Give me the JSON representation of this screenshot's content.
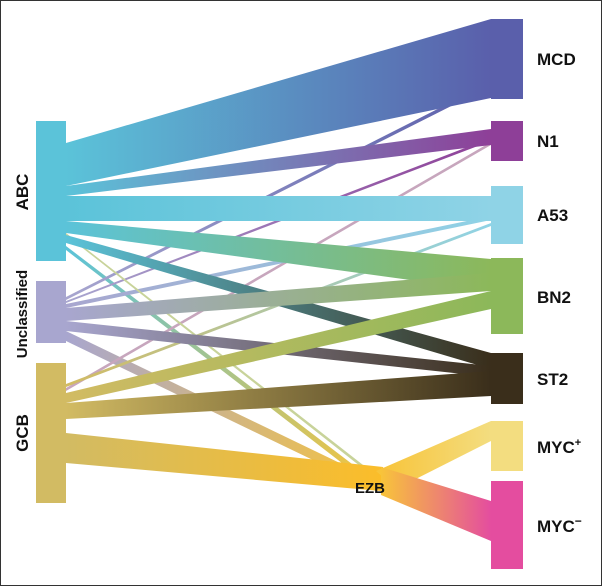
{
  "diagram": {
    "left_groups": [
      {
        "id": "abc",
        "label": "ABC",
        "color": "#5bc3d9"
      },
      {
        "id": "unclassified",
        "label": "Unclassified",
        "color": "#a8a6cf"
      },
      {
        "id": "gcb",
        "label": "GCB",
        "color": "#d2bb63"
      }
    ],
    "right_groups": [
      {
        "id": "mcd",
        "label": "MCD",
        "color": "#5a5fab"
      },
      {
        "id": "n1",
        "label": "N1",
        "color": "#8e3f98"
      },
      {
        "id": "a53",
        "label": "A53",
        "color": "#8fd3e6"
      },
      {
        "id": "bn2",
        "label": "BN2",
        "color": "#8cb85a"
      },
      {
        "id": "st2",
        "label": "ST2",
        "color": "#3a2e1b"
      },
      {
        "id": "mycp",
        "label_main": "MYC",
        "label_sup": "+",
        "color": "#f3dd80"
      },
      {
        "id": "mycm",
        "label_main": "MYC",
        "label_sup": "−",
        "color": "#e44d9f"
      }
    ],
    "hub": {
      "label": "EZB",
      "color": "#f8c43a"
    }
  }
}
